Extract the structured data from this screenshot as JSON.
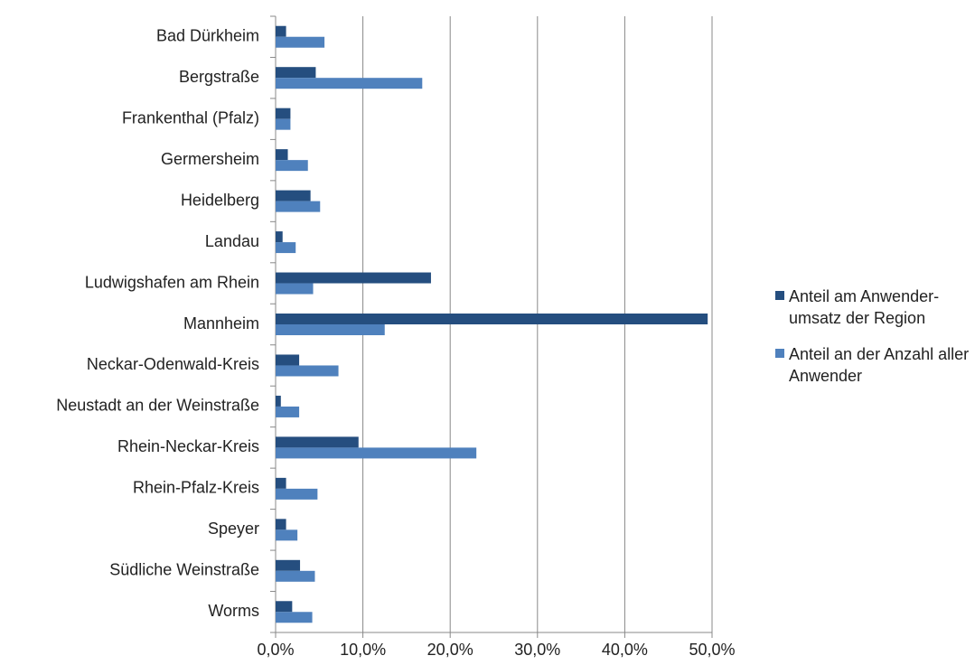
{
  "chart_data": {
    "type": "bar",
    "orientation": "horizontal",
    "categories": [
      "Bad Dürkheim",
      "Bergstraße",
      "Frankenthal (Pfalz)",
      "Germersheim",
      "Heidelberg",
      "Landau",
      "Ludwigshafen am Rhein",
      "Mannheim",
      "Neckar-Odenwald-Kreis",
      "Neustadt an der Weinstraße",
      "Rhein-Neckar-Kreis",
      "Rhein-Pfalz-Kreis",
      "Speyer",
      "Südliche Weinstraße",
      "Worms"
    ],
    "series": [
      {
        "name": "Anteil am Anwender-umsatz der Region",
        "color": "#254e7f",
        "values": [
          1.2,
          4.6,
          1.7,
          1.4,
          4.0,
          0.8,
          17.8,
          49.5,
          2.7,
          0.6,
          9.5,
          1.2,
          1.2,
          2.8,
          1.9
        ]
      },
      {
        "name": "Anteil an der Anzahl aller Anwender",
        "color": "#4f81bd",
        "values": [
          5.6,
          16.8,
          1.7,
          3.7,
          5.1,
          2.3,
          4.3,
          12.5,
          7.2,
          2.7,
          23.0,
          4.8,
          2.5,
          4.5,
          4.2
        ]
      }
    ],
    "xlim": [
      0,
      50
    ],
    "xticks": [
      {
        "value": 0,
        "label": "0,0%"
      },
      {
        "value": 10,
        "label": "10,0%"
      },
      {
        "value": 20,
        "label": "20,0%"
      },
      {
        "value": 30,
        "label": "30,0%"
      },
      {
        "value": 40,
        "label": "40,0%"
      },
      {
        "value": 50,
        "label": "50,0%"
      }
    ],
    "grid": true,
    "legend": "right"
  }
}
